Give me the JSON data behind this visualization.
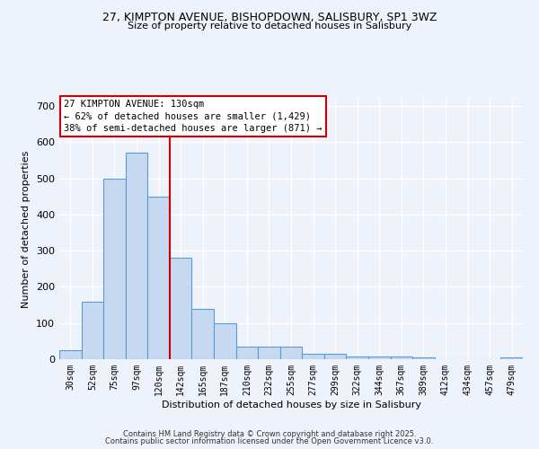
{
  "title_line1": "27, KIMPTON AVENUE, BISHOPDOWN, SALISBURY, SP1 3WZ",
  "title_line2": "Size of property relative to detached houses in Salisbury",
  "xlabel": "Distribution of detached houses by size in Salisbury",
  "ylabel": "Number of detached properties",
  "categories": [
    "30sqm",
    "52sqm",
    "75sqm",
    "97sqm",
    "120sqm",
    "142sqm",
    "165sqm",
    "187sqm",
    "210sqm",
    "232sqm",
    "255sqm",
    "277sqm",
    "299sqm",
    "322sqm",
    "344sqm",
    "367sqm",
    "389sqm",
    "412sqm",
    "434sqm",
    "457sqm",
    "479sqm"
  ],
  "values": [
    25,
    160,
    500,
    570,
    450,
    280,
    140,
    100,
    35,
    35,
    35,
    15,
    15,
    8,
    8,
    8,
    5,
    0,
    0,
    0,
    5
  ],
  "bar_color": "#c6d9f0",
  "bar_edge_color": "#5b9bd5",
  "vline_x": 4.5,
  "vline_color": "#cc0000",
  "annotation_text": "27 KIMPTON AVENUE: 130sqm\n← 62% of detached houses are smaller (1,429)\n38% of semi-detached houses are larger (871) →",
  "annotation_box_facecolor": "#ffffff",
  "annotation_box_edgecolor": "#cc0000",
  "background_color": "#eef2fa",
  "grid_color": "#ffffff",
  "footer_line1": "Contains HM Land Registry data © Crown copyright and database right 2025.",
  "footer_line2": "Contains public sector information licensed under the Open Government Licence v3.0.",
  "ylim": [
    0,
    720
  ],
  "yticks": [
    0,
    100,
    200,
    300,
    400,
    500,
    600,
    700
  ]
}
